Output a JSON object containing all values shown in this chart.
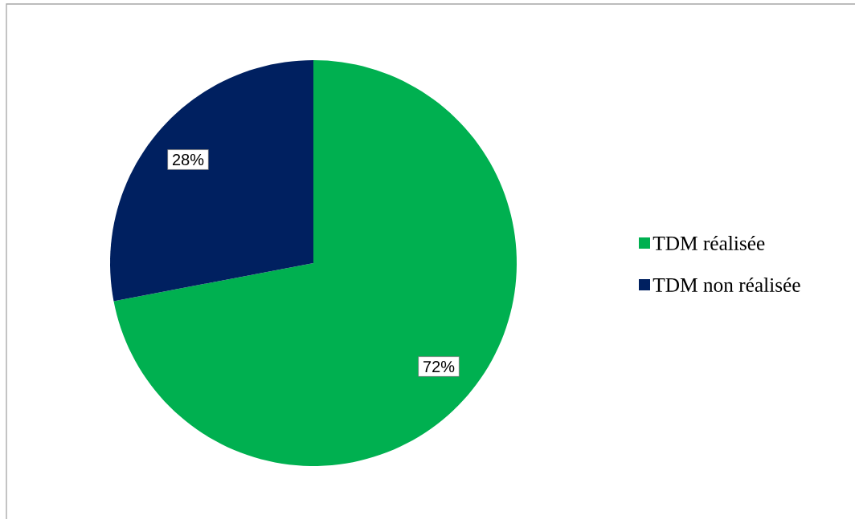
{
  "chart_data": {
    "type": "pie",
    "categories": [
      "TDM réalisée",
      "TDM non réalisée"
    ],
    "values": [
      72,
      28
    ],
    "colors": [
      "#00b050",
      "#002060"
    ],
    "value_labels": [
      "72%",
      "28%"
    ],
    "legend": "right"
  }
}
